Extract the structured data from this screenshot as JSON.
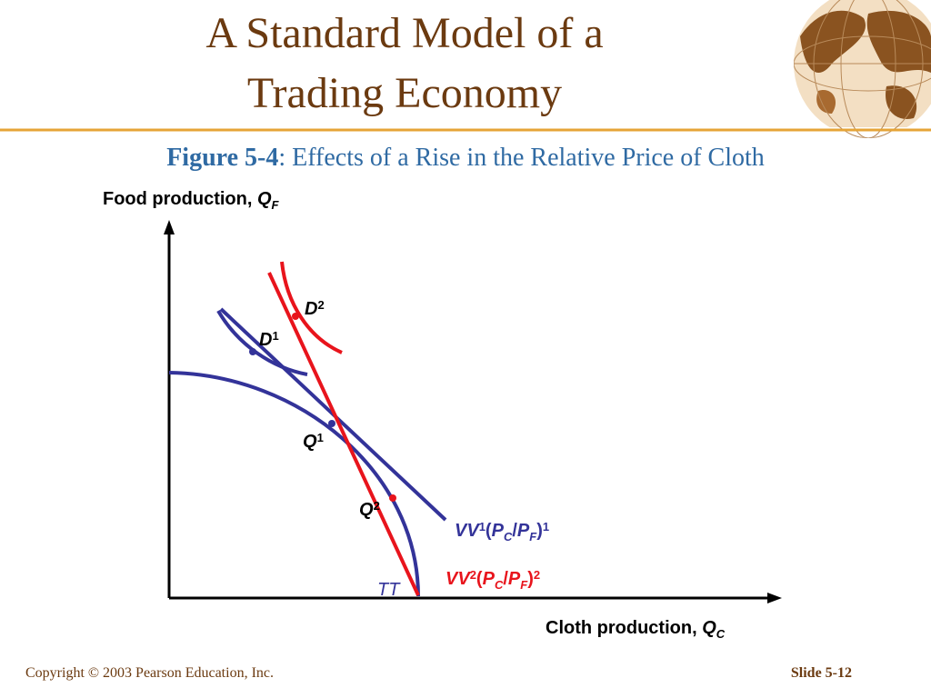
{
  "header": {
    "title_lines": [
      "A Standard Model of a",
      "Trading Economy"
    ]
  },
  "figure": {
    "number": "Figure 5-4",
    "caption": ": Effects of a Rise in the Relative Price of Cloth"
  },
  "diagram": {
    "y_axis_label": [
      "Food production, ",
      "Q",
      "F"
    ],
    "x_axis_label": [
      "Cloth production, ",
      "Q",
      "C"
    ],
    "labels": {
      "d1": [
        "D",
        "1"
      ],
      "d2": [
        "D",
        "2"
      ],
      "q1": [
        "Q",
        "1"
      ],
      "q2": [
        "Q",
        "2"
      ],
      "vv1": [
        "VV",
        "1",
        "(",
        "P",
        "C",
        "/",
        "P",
        "F",
        ")",
        "1"
      ],
      "vv2": [
        "VV",
        "2",
        "(",
        "P",
        "C",
        "/",
        "P",
        "F",
        ")",
        "2"
      ],
      "tt": "TT"
    }
  },
  "footer": {
    "copyright": "Copyright © 2003 Pearson Education, Inc.",
    "slide": "Slide 5-12"
  }
}
